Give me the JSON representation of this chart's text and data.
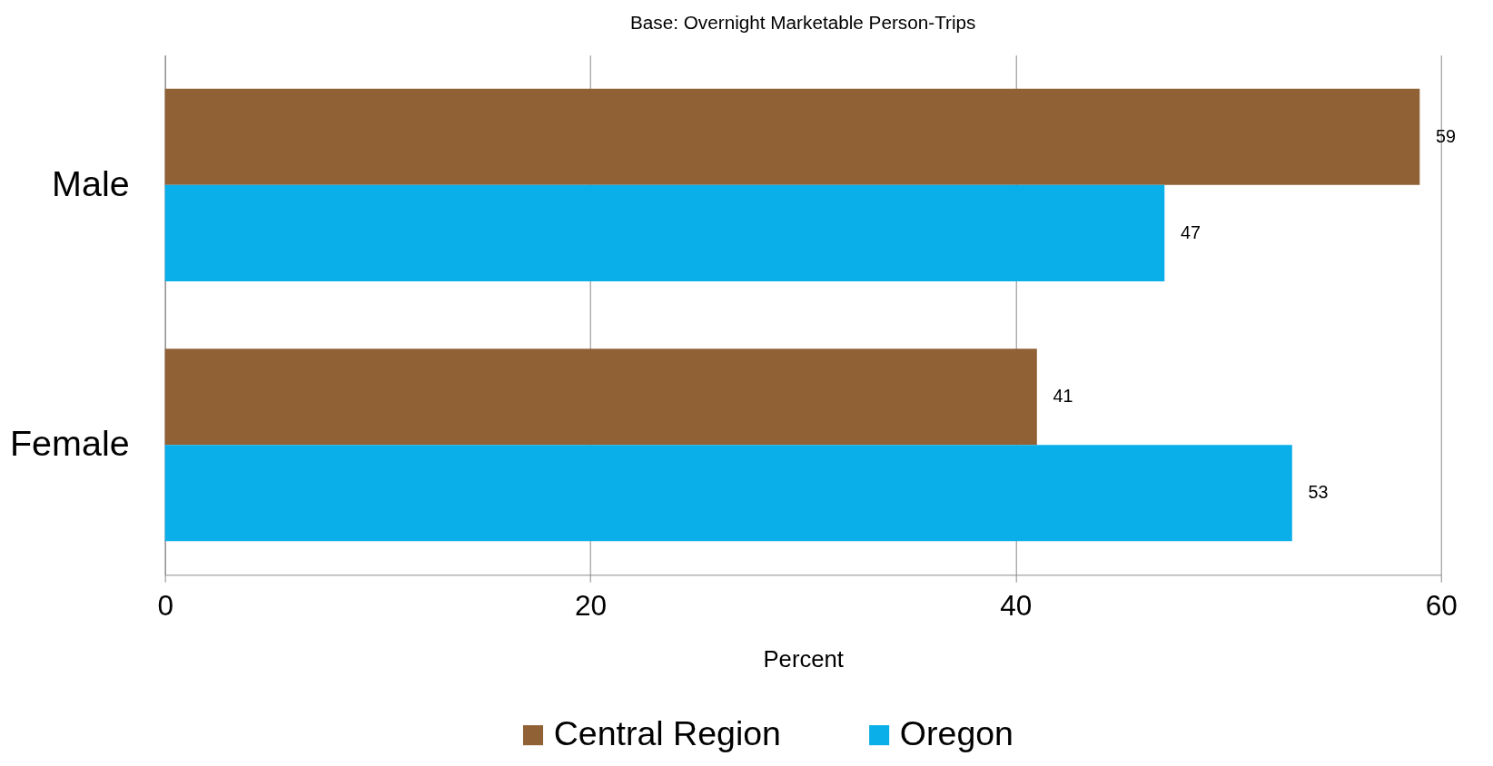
{
  "chart_data": {
    "type": "bar",
    "orientation": "horizontal",
    "title": "Base: Overnight Marketable Person-Trips",
    "xlabel": "Percent",
    "categories": [
      "Male",
      "Female"
    ],
    "series": [
      {
        "name": "Central Region",
        "color": "#8f6134",
        "values": [
          59,
          41
        ]
      },
      {
        "name": "Oregon",
        "color": "#0aaee8",
        "values": [
          47,
          53
        ]
      }
    ],
    "xlim": [
      0,
      60
    ],
    "xticks": [
      0,
      20,
      40,
      60
    ],
    "grid": "x",
    "legend": "bottom",
    "data_labels": true
  }
}
